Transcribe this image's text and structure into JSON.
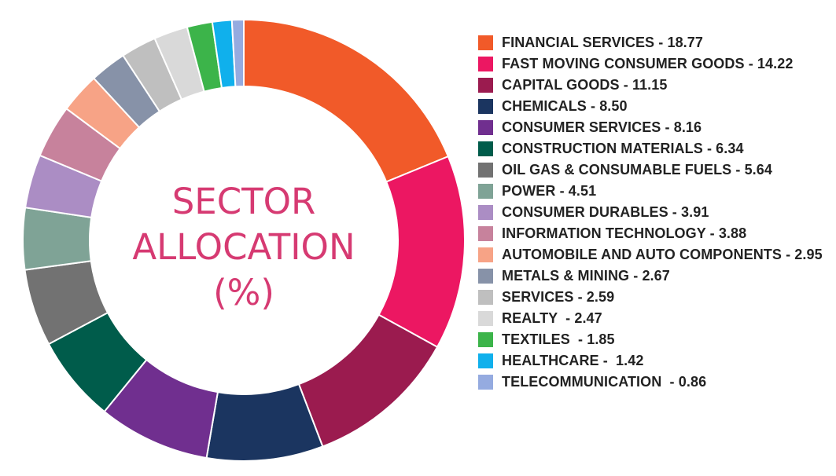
{
  "chart_data": {
    "type": "pie",
    "donut": true,
    "title": "SECTOR ALLOCATION (%)",
    "title_lines": [
      "SECTOR",
      "ALLOCATION",
      "(%)"
    ],
    "legend_position": "right",
    "slices": [
      {
        "label": "FINANCIAL SERVICES - 18.77",
        "value": 18.77,
        "color": "#f15a29"
      },
      {
        "label": "FAST MOVING CONSUMER GOODS - 14.22",
        "value": 14.22,
        "color": "#ec1762"
      },
      {
        "label": "CAPITAL GOODS - 11.15",
        "value": 11.15,
        "color": "#9b1b4f"
      },
      {
        "label": "CHEMICALS - 8.50",
        "value": 8.5,
        "color": "#1b3560"
      },
      {
        "label": "CONSUMER SERVICES - 8.16",
        "value": 8.16,
        "color": "#702f8f"
      },
      {
        "label": "CONSTRUCTION MATERIALS - 6.34",
        "value": 6.34,
        "color": "#005c4b"
      },
      {
        "label": "OIL GAS & CONSUMABLE FUELS - 5.64",
        "value": 5.64,
        "color": "#727272"
      },
      {
        "label": "POWER - 4.51",
        "value": 4.51,
        "color": "#7fa396"
      },
      {
        "label": "CONSUMER DURABLES - 3.91",
        "value": 3.91,
        "color": "#ab8dc4"
      },
      {
        "label": "INFORMATION TECHNOLOGY - 3.88",
        "value": 3.88,
        "color": "#c7829c"
      },
      {
        "label": "AUTOMOBILE AND AUTO COMPONENTS - 2.95",
        "value": 2.95,
        "color": "#f7a386"
      },
      {
        "label": "METALS & MINING - 2.67",
        "value": 2.67,
        "color": "#8792a8"
      },
      {
        "label": "SERVICES - 2.59",
        "value": 2.59,
        "color": "#bfbfbf"
      },
      {
        "label": "REALTY  - 2.47",
        "value": 2.47,
        "color": "#d9d9d9"
      },
      {
        "label": "TEXTILES  - 1.85",
        "value": 1.85,
        "color": "#3cb44a"
      },
      {
        "label": "HEALTHCARE -  1.42",
        "value": 1.42,
        "color": "#10b0ec"
      },
      {
        "label": "TELECOMMUNICATION  - 0.86",
        "value": 0.86,
        "color": "#95abe0"
      }
    ]
  }
}
